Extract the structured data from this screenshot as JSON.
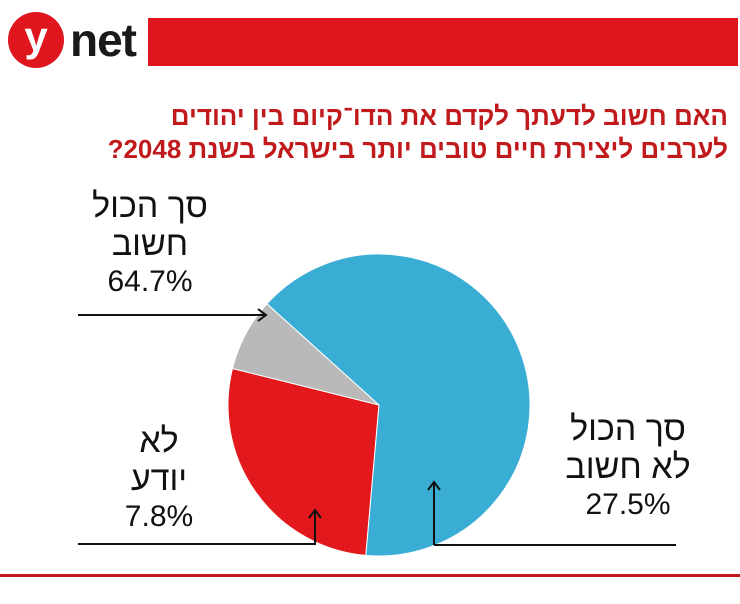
{
  "brand": {
    "logo_letter": "y",
    "logo_word": "net"
  },
  "title_lines": [
    "האם חשוב לדעתך לקדם את הדו־קיום בין יהודים",
    "לערבים  ליצירת חיים טובים יותר בישראל בשנת 2048?"
  ],
  "colors": {
    "important": "#3aadd4",
    "not_important": "#e2181d",
    "dont_know": "#b9b9b9"
  },
  "chart_data": {
    "type": "pie",
    "title": "האם חשוב לדעתך לקדם את הדו־קיום בין יהודים לערבים  ליצירת חיים טובים יותר בישראל בשנת 2048?",
    "slices": [
      {
        "key": "important",
        "lines": [
          "סך הכול",
          "חשוב"
        ],
        "value": 64.7,
        "label_value": "64.7%"
      },
      {
        "key": "not_important",
        "lines": [
          "סך הכול",
          "לא חשוב"
        ],
        "value": 27.5,
        "label_value": "27.5%"
      },
      {
        "key": "dont_know",
        "lines": [
          "לא",
          "יודע"
        ],
        "value": 7.8,
        "label_value": "7.8%"
      }
    ]
  }
}
